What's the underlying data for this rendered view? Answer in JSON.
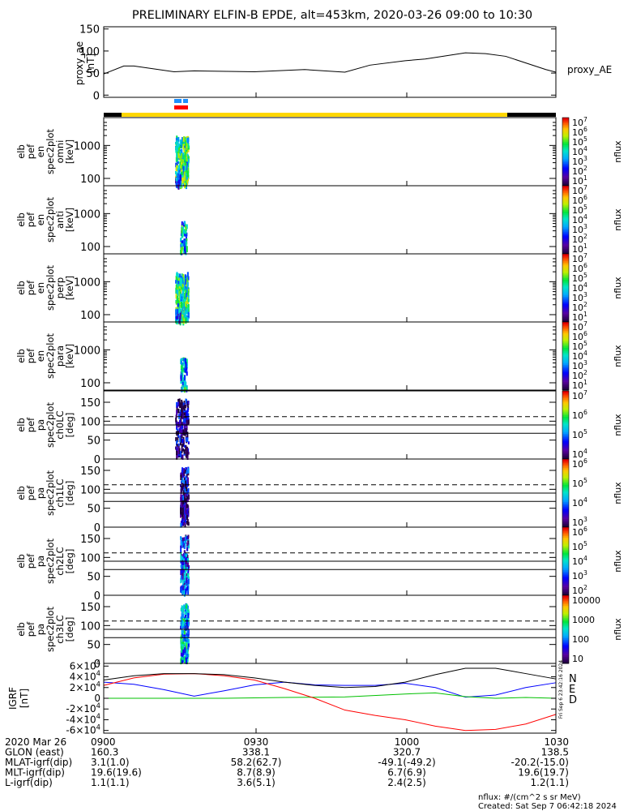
{
  "title": "PRELIMINARY ELFIN-B EPDE, alt=453km, 2020-03-26 09:00 to 10:30",
  "colors": {
    "trace": "#000000",
    "status_bar": "#ffd700",
    "status_bar_end": "#000000",
    "flag_blue": "#1e90ff",
    "flag_red": "#ff0000",
    "igrf_n": "#0000ff",
    "igrf_e": "#00c000",
    "igrf_d": "#ff0000",
    "igrf_total": "#000000"
  },
  "panels": {
    "ae": {
      "ylabel": "proxy_ae",
      "units": "[nT]",
      "legend": "proxy_AE",
      "ticks": [
        "150",
        "100",
        "50",
        "0"
      ]
    },
    "spectra": [
      {
        "ylabel": [
          "elb",
          "pef",
          "en",
          "spec2plot",
          "omni",
          "[keV]"
        ],
        "ticks": [
          "1000",
          "100"
        ],
        "cbar_ticks": [
          "10^7",
          "10^6",
          "10^5",
          "10^4",
          "10^3",
          "10^2",
          "10^1"
        ],
        "cbar_label": "nflux"
      },
      {
        "ylabel": [
          "elb",
          "pef",
          "en",
          "spec2plot",
          "anti",
          "[keV]"
        ],
        "ticks": [
          "1000",
          "100"
        ],
        "cbar_ticks": [
          "10^7",
          "10^6",
          "10^5",
          "10^4",
          "10^3",
          "10^2",
          "10^1"
        ],
        "cbar_label": "nflux"
      },
      {
        "ylabel": [
          "elb",
          "pef",
          "en",
          "spec2plot",
          "perp",
          "[keV]"
        ],
        "ticks": [
          "1000",
          "100"
        ],
        "cbar_ticks": [
          "10^7",
          "10^6",
          "10^5",
          "10^4",
          "10^3",
          "10^2",
          "10^1"
        ],
        "cbar_label": "nflux"
      },
      {
        "ylabel": [
          "elb",
          "pef",
          "en",
          "spec2plot",
          "para",
          "[keV]"
        ],
        "ticks": [
          "1000",
          "100"
        ],
        "cbar_ticks": [
          "10^7",
          "10^6",
          "10^5",
          "10^4",
          "10^3",
          "10^2",
          "10^1"
        ],
        "cbar_label": "nflux"
      }
    ],
    "pitch": [
      {
        "ylabel": [
          "elb",
          "pef",
          "pa",
          "spec2plot",
          "ch0LC",
          "[deg]"
        ],
        "ticks": [
          "150",
          "100",
          "50",
          "0"
        ],
        "cbar_ticks": [
          "10^7",
          "10^6",
          "10^5",
          "10^4"
        ],
        "cbar_label": "nflux"
      },
      {
        "ylabel": [
          "elb",
          "pef",
          "pa",
          "spec2plot",
          "ch1LC",
          "[deg]"
        ],
        "ticks": [
          "150",
          "100",
          "50",
          "0"
        ],
        "cbar_ticks": [
          "10^6",
          "10^5",
          "10^4",
          "10^3"
        ],
        "cbar_label": "nflux"
      },
      {
        "ylabel": [
          "elb",
          "pef",
          "pa",
          "spec2plot",
          "ch2LC",
          "[deg]"
        ],
        "ticks": [
          "150",
          "100",
          "50",
          "0"
        ],
        "cbar_ticks": [
          "10^6",
          "10^5",
          "10^4",
          "10^3",
          "10^2"
        ],
        "cbar_label": "nflux"
      },
      {
        "ylabel": [
          "elb",
          "pef",
          "pa",
          "spec2plot",
          "ch3LC",
          "[deg]"
        ],
        "ticks": [
          "150",
          "100",
          "50",
          "0"
        ],
        "cbar_ticks": [
          "10000",
          "1000",
          "100",
          "10"
        ],
        "cbar_label": "nflux"
      }
    ],
    "igrf": {
      "ylabel": "IGRF",
      "units": "[nT]",
      "ticks": [
        "6×10^4",
        "4×10^4",
        "2×10^4",
        "0",
        "-2×10^4",
        "-4×10^4",
        "-6×10^4"
      ],
      "legend": [
        "N",
        "E",
        "D"
      ],
      "side_stamp": "Fri Sep  6 23:42:16 2024"
    }
  },
  "footer": {
    "rows": [
      {
        "label": "2020 Mar 26",
        "values": [
          "0900",
          "0930",
          "1000",
          "1030"
        ]
      },
      {
        "label": "GLON (east)",
        "values": [
          "160.3",
          "338.1",
          "320.7",
          "138.5"
        ]
      },
      {
        "label": "MLAT-igrf(dip)",
        "values": [
          "3.1(1.0)",
          "58.2(62.7)",
          "-49.1(-49.2)",
          "-20.2(-15.0)"
        ]
      },
      {
        "label": "MLT-igrf(dip)",
        "values": [
          "19.6(19.6)",
          "8.7(8.9)",
          "6.7(6.9)",
          "19.6(19.7)"
        ]
      },
      {
        "label": "L-igrf(dip)",
        "values": [
          "1.1(1.1)",
          "3.6(5.1)",
          "2.4(2.5)",
          "1.2(1.1)"
        ]
      }
    ],
    "units_note": "nflux: #/(cm^2 s sr MeV)",
    "created": "Created: Sat Sep  7 06:42:18 2024"
  },
  "chart_data": [
    {
      "type": "line",
      "title": "PRELIMINARY ELFIN-B EPDE, alt=453km, 2020-03-26 09:00 to 10:30",
      "ylabel": "proxy_ae [nT]",
      "xlim_min": [
        0,
        90
      ],
      "ylim": [
        -5,
        155
      ],
      "series": [
        {
          "name": "proxy_AE",
          "x": [
            0,
            4,
            6,
            14,
            18,
            30,
            40,
            48,
            53,
            60,
            64,
            72,
            76,
            80,
            88,
            90
          ],
          "y": [
            48,
            66,
            66,
            53,
            55,
            53,
            58,
            52,
            68,
            78,
            82,
            96,
            94,
            88,
            58,
            52
          ]
        }
      ]
    },
    {
      "type": "heatmap",
      "ylabel": "elb pef en spec2plot [keV]",
      "scale": "log",
      "ylim": [
        60,
        7000
      ],
      "colorbar": {
        "label": "nflux",
        "range": [
          10,
          10000000
        ]
      }
    },
    {
      "type": "heatmap",
      "ylabel": "elb pef pa spec2plot [deg]",
      "ylim": [
        0,
        180
      ],
      "reference_lines_deg": {
        "dashed": 112,
        "solid": [
          90,
          68
        ]
      }
    },
    {
      "type": "line",
      "ylabel": "IGRF [nT]",
      "ylim": [
        -65000,
        65000
      ],
      "series": [
        {
          "name": "N",
          "x": [
            0,
            6,
            12,
            18,
            24,
            30,
            36,
            42,
            48,
            54,
            60,
            66,
            72,
            78,
            84,
            90
          ],
          "y": [
            30000,
            26000,
            16000,
            4000,
            14000,
            25000,
            30000,
            25000,
            24000,
            24000,
            28000,
            20000,
            2000,
            6000,
            20000,
            29000
          ]
        },
        {
          "name": "E",
          "x": [
            0,
            12,
            24,
            36,
            48,
            60,
            66,
            72,
            78,
            84,
            90
          ],
          "y": [
            0,
            0,
            0,
            1500,
            2500,
            8000,
            10000,
            3000,
            0,
            1500,
            0
          ]
        },
        {
          "name": "D",
          "x": [
            0,
            6,
            12,
            18,
            24,
            30,
            36,
            42,
            48,
            54,
            60,
            66,
            72,
            78,
            84,
            90
          ],
          "y": [
            24000,
            38000,
            45000,
            46000,
            42000,
            34000,
            18000,
            0,
            -22000,
            -32000,
            -40000,
            -52000,
            -60000,
            -58000,
            -48000,
            -30000
          ]
        },
        {
          "name": "",
          "x": [
            0,
            6,
            12,
            18,
            24,
            30,
            36,
            42,
            48,
            54,
            60,
            66,
            72,
            78,
            84,
            90
          ],
          "y": [
            34000,
            42000,
            46000,
            46000,
            44000,
            38000,
            30000,
            24000,
            20000,
            22000,
            30000,
            44000,
            56000,
            56000,
            46000,
            36000
          ]
        }
      ]
    }
  ]
}
